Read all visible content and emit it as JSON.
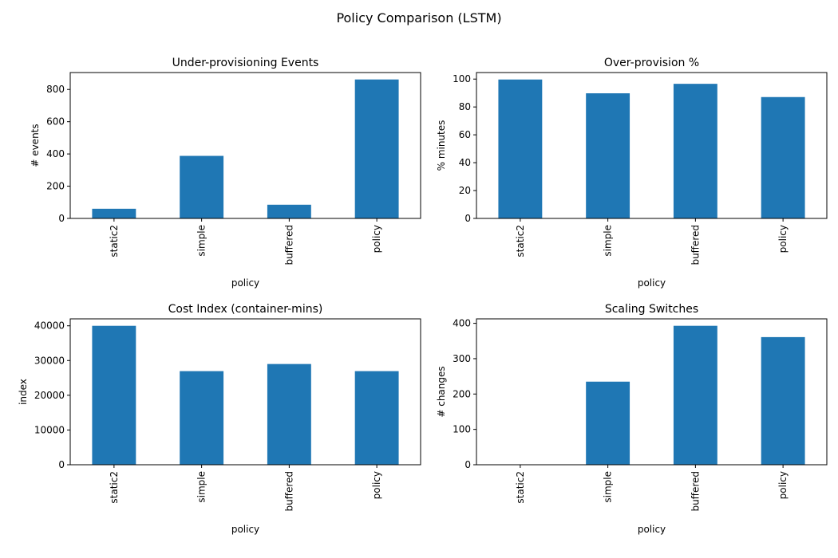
{
  "figure": {
    "title": "Policy Comparison (LSTM)",
    "bar_color": "#1f77b4"
  },
  "chart_data": [
    {
      "type": "bar",
      "title": "Under-provisioning Events",
      "xlabel": "policy",
      "ylabel": "# events",
      "categories": [
        "static2",
        "simple",
        "buffered",
        "policy"
      ],
      "values": [
        60,
        388,
        85,
        862
      ],
      "ylim": [
        0,
        905
      ],
      "yticks": [
        0,
        200,
        400,
        600,
        800
      ]
    },
    {
      "type": "bar",
      "title": "Over-provision %",
      "xlabel": "policy",
      "ylabel": "% minutes",
      "categories": [
        "static2",
        "simple",
        "buffered",
        "policy"
      ],
      "values": [
        99.7,
        89.8,
        96.6,
        87.1
      ],
      "ylim": [
        0,
        104.7
      ],
      "yticks": [
        0,
        20,
        40,
        60,
        80,
        100
      ]
    },
    {
      "type": "bar",
      "title": "Cost Index (container-mins)",
      "xlabel": "policy",
      "ylabel": "index",
      "categories": [
        "static2",
        "simple",
        "buffered",
        "policy"
      ],
      "values": [
        40000,
        26950,
        29000,
        26950
      ],
      "ylim": [
        0,
        42000
      ],
      "yticks": [
        0,
        10000,
        20000,
        30000,
        40000
      ]
    },
    {
      "type": "bar",
      "title": "Scaling Switches",
      "xlabel": "policy",
      "ylabel": "# changes",
      "categories": [
        "static2",
        "simple",
        "buffered",
        "policy"
      ],
      "values": [
        1,
        235,
        393,
        361
      ],
      "ylim": [
        0,
        412.6
      ],
      "yticks": [
        0,
        100,
        200,
        300,
        400
      ]
    }
  ]
}
